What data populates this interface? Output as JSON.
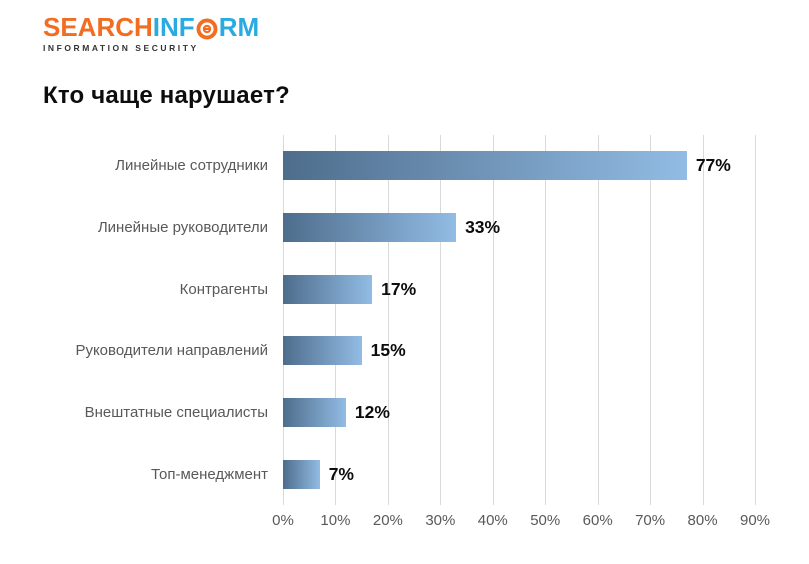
{
  "logo": {
    "part1": "SEARCH",
    "part2": "INF",
    "part3": "RM",
    "tagline": "INFORMATION SECURITY",
    "orange": "#F26C21",
    "blue": "#29ABE2"
  },
  "title": "Кто чаще нарушает?",
  "chart_data": {
    "type": "bar",
    "orientation": "horizontal",
    "title": "Кто чаще нарушает?",
    "categories": [
      "Линейные сотрудники",
      "Линейные руководители",
      "Контрагенты",
      "Руководители направлений",
      "Внештатные специалисты",
      "Топ-менеджмент"
    ],
    "values": [
      77,
      33,
      17,
      15,
      12,
      7
    ],
    "value_labels": [
      "77%",
      "33%",
      "17%",
      "15%",
      "12%",
      "7%"
    ],
    "x_ticks": [
      "0%",
      "10%",
      "20%",
      "30%",
      "40%",
      "50%",
      "60%",
      "70%",
      "80%",
      "90%"
    ],
    "xlim": [
      0,
      90
    ],
    "grid": true,
    "xlabel": "",
    "ylabel": "",
    "legend": false,
    "colors": {
      "bar_gradient_start": "#4E6D8C",
      "bar_gradient_end": "#92BCE4",
      "gridline": "#d9d9d9",
      "category_label": "#595959",
      "tick_label": "#595959",
      "value_label": "#0d0d0d"
    }
  }
}
